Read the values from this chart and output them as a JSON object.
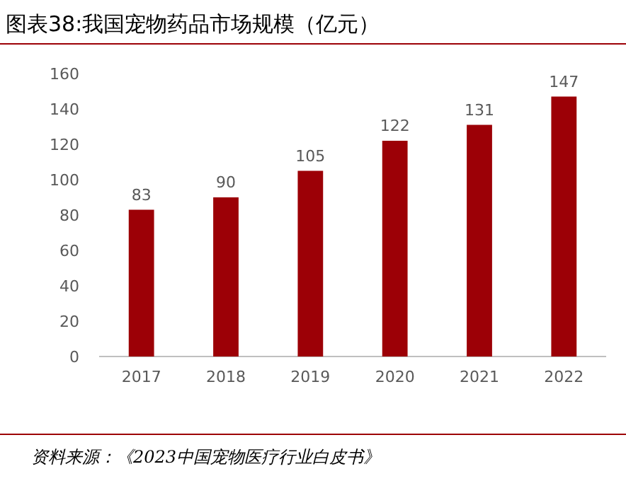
{
  "chart_data": {
    "type": "bar",
    "title": "图表38:我国宠物药品市场规模（亿元）",
    "categories": [
      "2017",
      "2018",
      "2019",
      "2020",
      "2021",
      "2022"
    ],
    "values": [
      83,
      90,
      105,
      122,
      131,
      147
    ],
    "color": "#9c0006",
    "ylim": [
      0,
      160
    ],
    "yticks": [
      0,
      20,
      40,
      60,
      80,
      100,
      120,
      140,
      160
    ],
    "data_labels": true,
    "annotations": [
      "资料来源：《2023中国宠物医疗行业白皮书》"
    ]
  }
}
